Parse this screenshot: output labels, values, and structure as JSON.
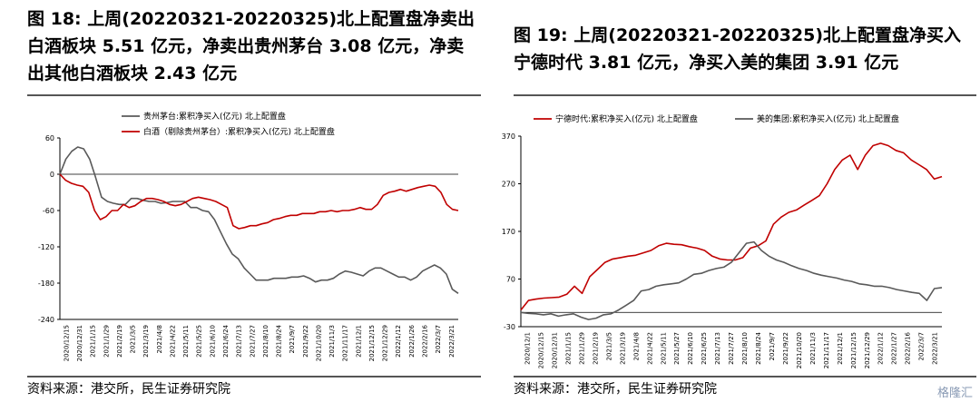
{
  "charts": [
    {
      "title": "图 18: 上周(20220321-20220325)北上配置盘净卖出白酒板块 5.51 亿元，净卖出贵州茅台 3.08 亿元，净卖出其他白酒板块 2.43 亿元",
      "source": "资料来源：港交所，民生证券研究院"
    },
    {
      "title": "图 19: 上周(20220321-20220325)北上配置盘净买入宁德时代 3.81 亿元，净买入美的集团 3.91 亿元",
      "source": "资料来源：港交所，民生证券研究院"
    }
  ],
  "chart_data": [
    {
      "type": "line",
      "ylim": [
        -240,
        60
      ],
      "yticks": [
        "60",
        "0",
        "-60",
        "-120",
        "-180",
        "-240"
      ],
      "xticks": [
        "2020/12/15",
        "2020/12/31",
        "2021/1/15",
        "2021/1/29",
        "2021/2/19",
        "2021/3/5",
        "2021/3/19",
        "2021/4/8",
        "2021/4/22",
        "2021/5/11",
        "2021/5/25",
        "2021/6/10",
        "2021/6/24",
        "2021/7/13",
        "2021/7/27",
        "2021/8/10",
        "2021/8/24",
        "2021/9/7",
        "2021/9/22",
        "2021/10/20",
        "2021/11/3",
        "2021/11/17",
        "2021/12/1",
        "2021/12/15",
        "2021/12/29",
        "2022/1/12",
        "2022/1/26",
        "2022/2/16",
        "2022/3/7",
        "2022/3/21"
      ],
      "series": [
        {
          "name": "贵州茅台:累积净买入(亿元) 北上配置盘",
          "color": "#595959",
          "values": [
            0,
            25,
            38,
            45,
            42,
            25,
            -5,
            -38,
            -45,
            -48,
            -50,
            -50,
            -40,
            -40,
            -43,
            -45,
            -45,
            -48,
            -47,
            -45,
            -45,
            -45,
            -55,
            -55,
            -60,
            -62,
            -75,
            -95,
            -115,
            -132,
            -140,
            -155,
            -165,
            -175,
            -175,
            -175,
            -172,
            -172,
            -172,
            -170,
            -170,
            -168,
            -172,
            -178,
            -175,
            -175,
            -172,
            -165,
            -160,
            -162,
            -165,
            -168,
            -160,
            -155,
            -155,
            -160,
            -165,
            -170,
            -170,
            -175,
            -170,
            -160,
            -155,
            -150,
            -155,
            -165,
            -190,
            -197
          ]
        },
        {
          "name": "白酒（剔除贵州茅台）:累积净买入(亿元) 北上配置盘",
          "color": "#c00000",
          "values": [
            0,
            -10,
            -15,
            -18,
            -20,
            -30,
            -60,
            -75,
            -70,
            -60,
            -60,
            -50,
            -55,
            -52,
            -45,
            -40,
            -40,
            -42,
            -45,
            -50,
            -52,
            -50,
            -45,
            -40,
            -38,
            -40,
            -42,
            -45,
            -50,
            -55,
            -85,
            -90,
            -88,
            -85,
            -85,
            -82,
            -80,
            -75,
            -73,
            -70,
            -68,
            -68,
            -65,
            -65,
            -65,
            -62,
            -62,
            -60,
            -62,
            -60,
            -60,
            -58,
            -55,
            -58,
            -58,
            -50,
            -35,
            -30,
            -28,
            -25,
            -28,
            -25,
            -22,
            -20,
            -18,
            -20,
            -30,
            -50,
            -58,
            -60
          ]
        }
      ]
    },
    {
      "type": "line",
      "ylim": [
        -30,
        370
      ],
      "yticks": [
        "370",
        "270",
        "170",
        "70",
        "-30"
      ],
      "xticks": [
        "2020/12/1",
        "2020/12/15",
        "2020/12/31",
        "2021/1/15",
        "2021/1/29",
        "2021/2/19",
        "2021/3/5",
        "2021/3/19",
        "2021/4/8",
        "2021/4/22",
        "2021/5/11",
        "2021/5/27",
        "2021/6/10",
        "2021/6/25",
        "2021/7/13",
        "2021/7/27",
        "2021/8/10",
        "2021/8/24",
        "2021/9/7",
        "2021/9/22",
        "2021/10/20",
        "2021/11/3",
        "2021/11/17",
        "2021/12/1",
        "2021/12/15",
        "2021/12/29",
        "2022/1/12",
        "2022/1/27",
        "2022/2/16",
        "2022/3/7",
        "2022/3/21"
      ],
      "series": [
        {
          "name": "宁德时代:累积净买入(亿元) 北上配置盘",
          "color": "#c00000",
          "values": [
            5,
            25,
            28,
            30,
            31,
            32,
            38,
            55,
            40,
            75,
            90,
            105,
            112,
            115,
            118,
            120,
            125,
            130,
            140,
            145,
            143,
            142,
            138,
            135,
            130,
            118,
            112,
            110,
            110,
            115,
            135,
            140,
            150,
            185,
            200,
            210,
            215,
            225,
            235,
            245,
            270,
            300,
            320,
            330,
            300,
            330,
            350,
            355,
            350,
            340,
            335,
            320,
            310,
            300,
            280,
            285
          ]
        },
        {
          "name": "美的集团:累积净买入(亿元) 北上配置盘",
          "color": "#595959",
          "values": [
            0,
            -2,
            -3,
            -5,
            -3,
            -8,
            -5,
            -3,
            -10,
            -15,
            -12,
            -5,
            -3,
            5,
            15,
            25,
            45,
            48,
            55,
            58,
            60,
            62,
            70,
            80,
            82,
            88,
            92,
            95,
            105,
            125,
            145,
            148,
            130,
            118,
            110,
            105,
            98,
            92,
            88,
            82,
            78,
            75,
            72,
            68,
            65,
            60,
            58,
            55,
            55,
            52,
            48,
            45,
            42,
            40,
            25,
            50,
            52
          ]
        }
      ]
    }
  ]
}
